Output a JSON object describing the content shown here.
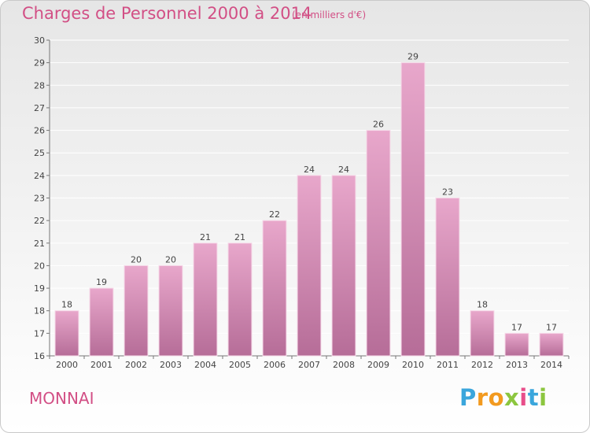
{
  "header": {
    "title": "Charges de Personnel 2000 à 2014",
    "subtitle": "(en milliers d'€)"
  },
  "footer": {
    "town": "MONNAI",
    "logo": [
      "P",
      "r",
      "o",
      "x",
      "i",
      "t",
      "i"
    ],
    "logo_colors": [
      "#3aa6dc",
      "#f29a1f",
      "#f29a1f",
      "#8cc63f",
      "#e84e8a",
      "#3aa6dc",
      "#8cc63f"
    ]
  },
  "colors": {
    "accent": "#d24f85",
    "bar_light": "#e8a7cb",
    "bar_dark": "#b66d98"
  },
  "chart_data": {
    "type": "bar",
    "title": "Charges de Personnel 2000 à 2014",
    "subtitle": "(en milliers d'€)",
    "categories": [
      "2000",
      "2001",
      "2002",
      "2003",
      "2004",
      "2005",
      "2006",
      "2007",
      "2008",
      "2009",
      "2010",
      "2011",
      "2012",
      "2013",
      "2014"
    ],
    "values": [
      18,
      19,
      20,
      20,
      21,
      21,
      22,
      24,
      24,
      26,
      29,
      23,
      18,
      17,
      17
    ],
    "ylim": [
      16,
      30
    ],
    "yticks": [
      16,
      17,
      18,
      19,
      20,
      21,
      22,
      23,
      24,
      25,
      26,
      27,
      28,
      29,
      30
    ],
    "grid": true,
    "legend": "none"
  }
}
